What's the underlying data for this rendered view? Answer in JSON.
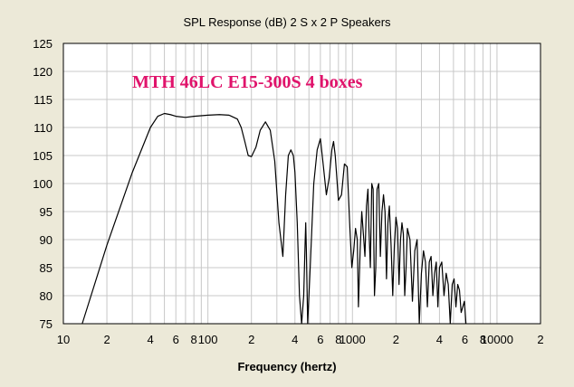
{
  "chart_data": {
    "type": "line",
    "title": "SPL Response (dB)   2 S x 2 P Speakers",
    "xlabel": "Frequency (hertz)",
    "ylabel": "",
    "x_scale": "log",
    "xlim": [
      10,
      20000
    ],
    "ylim": [
      75,
      125
    ],
    "y_ticks": [
      75,
      80,
      85,
      90,
      95,
      100,
      105,
      110,
      115,
      120,
      125
    ],
    "x_ticks": [
      {
        "value": 10,
        "label": "10"
      },
      {
        "value": 20,
        "label": "2"
      },
      {
        "value": 40,
        "label": "4"
      },
      {
        "value": 60,
        "label": "6"
      },
      {
        "value": 80,
        "label": "8"
      },
      {
        "value": 100,
        "label": "100"
      },
      {
        "value": 200,
        "label": "2"
      },
      {
        "value": 400,
        "label": "4"
      },
      {
        "value": 600,
        "label": "6"
      },
      {
        "value": 800,
        "label": "8"
      },
      {
        "value": 1000,
        "label": "1000"
      },
      {
        "value": 2000,
        "label": "2"
      },
      {
        "value": 4000,
        "label": "4"
      },
      {
        "value": 6000,
        "label": "6"
      },
      {
        "value": 8000,
        "label": "8"
      },
      {
        "value": 10000,
        "label": "10000"
      },
      {
        "value": 20000,
        "label": "2"
      }
    ],
    "grid": true,
    "annotation": "MTH 46LC E15-300S 4 boxes",
    "colors": {
      "background": "#ece9d8",
      "plot": "#ffffff",
      "grid": "#c8c8c8",
      "line": "#000000",
      "annotation": "#e0136b"
    },
    "series": [
      {
        "x": [
          13.5,
          20,
          30,
          40,
          45,
          50,
          55,
          60,
          70,
          80,
          100,
          120,
          140,
          160,
          170,
          180,
          190,
          200,
          215,
          230,
          250,
          270,
          290,
          310,
          330,
          345,
          360,
          375,
          390,
          400,
          415,
          430,
          445,
          460,
          470,
          475,
          480,
          490,
          510,
          540,
          570,
          600,
          630,
          660,
          690,
          720,
          740,
          760,
          800,
          840,
          880,
          920,
          960,
          990,
          1020,
          1050,
          1080,
          1100,
          1130,
          1160,
          1190,
          1220,
          1250,
          1280,
          1300,
          1330,
          1360,
          1390,
          1420,
          1450,
          1480,
          1520,
          1560,
          1600,
          1640,
          1680,
          1720,
          1760,
          1800,
          1850,
          1900,
          1950,
          2000,
          2050,
          2100,
          2150,
          2200,
          2250,
          2300,
          2350,
          2400,
          2500,
          2600,
          2700,
          2800,
          2900,
          3000,
          3100,
          3200,
          3300,
          3400,
          3500,
          3600,
          3700,
          3800,
          3900,
          4000,
          4150,
          4300,
          4450,
          4600,
          4750,
          4900,
          5050,
          5200,
          5350,
          5500,
          5650,
          5800,
          5950,
          6100
        ],
        "y": [
          75,
          89,
          102,
          110,
          112,
          112.5,
          112.3,
          112,
          111.8,
          112,
          112.2,
          112.3,
          112.2,
          111.5,
          110,
          107.5,
          105,
          104.8,
          106.5,
          109.5,
          111,
          109.5,
          104,
          93,
          87,
          98,
          105,
          106,
          105,
          102,
          93,
          80,
          75,
          80,
          89,
          93,
          88,
          75,
          85,
          100,
          106,
          108,
          103,
          98,
          101,
          106,
          107.5,
          105,
          97,
          98,
          103.5,
          103,
          92,
          85,
          88,
          92,
          90,
          78,
          88,
          95,
          91,
          87,
          96,
          99,
          92,
          85,
          100,
          99,
          80,
          85,
          99,
          100,
          87,
          95,
          98,
          95,
          83,
          93,
          96,
          89,
          80,
          89,
          94,
          92,
          82,
          90,
          93,
          91,
          80,
          85,
          92,
          90,
          79,
          88,
          90,
          75,
          84,
          88,
          86,
          78,
          86,
          87,
          80,
          84,
          86,
          78,
          85,
          86,
          80,
          84,
          82,
          75,
          82,
          83,
          78,
          82,
          81,
          77,
          78,
          79,
          75
        ]
      }
    ]
  }
}
